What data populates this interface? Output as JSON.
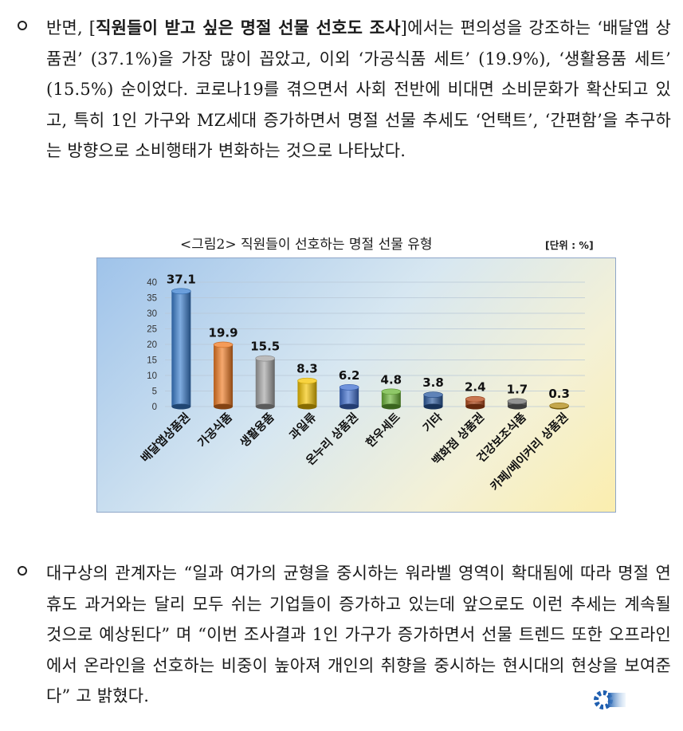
{
  "paragraph1": {
    "prefix": "반면, [",
    "bold": "직원들이 받고 싶은 명절 선물 선호도 조사",
    "rest": "]에서는 편의성을 강조하는 ‘배달앱 상품권’ (37.1%)을 가장 많이 꼽았고, 이외 ‘가공식품 세트’ (19.9%), ‘생활용품 세트’ (15.5%) 순이었다. 코로나19를 겪으면서 사회 전반에 비대면 소비문화가 확산되고 있고, 특히 1인 가구와 MZ세대 증가하면서 명절 선물 추세도 ‘언택트’, ‘간편함’을 추구하는 방향으로 소비행태가 변화하는 것으로 나타났다."
  },
  "figure": {
    "caption": "<그림2> 직원들이 선호하는 명절 선물 유형",
    "unit": "[단위 : %]"
  },
  "chart_data": {
    "type": "bar",
    "categories": [
      "배달앱상품권",
      "가공식품",
      "생활용품",
      "과일류",
      "온누리 상품권",
      "한우세트",
      "기타",
      "백화점 상품권",
      "건강보조식품",
      "카페/베이커리 상품권"
    ],
    "values": [
      37.1,
      19.9,
      15.5,
      8.3,
      6.2,
      4.8,
      3.8,
      2.4,
      1.7,
      0.3
    ],
    "value_labels": [
      "37.1",
      "19.9",
      "15.5",
      "8.3",
      "6.2",
      "4.8",
      "3.8",
      "2.4",
      "1.7",
      "0.3"
    ],
    "colors": [
      "#3a7fd0",
      "#f07a22",
      "#a5a5a5",
      "#f5c400",
      "#3f6fd0",
      "#6ab536",
      "#2a5aa0",
      "#b54a1a",
      "#6f6f6f",
      "#b08a10"
    ],
    "y_ticks": [
      0,
      5,
      10,
      15,
      20,
      25,
      30,
      35,
      40
    ],
    "ylim": [
      0,
      40
    ],
    "grid": true,
    "legend": "none"
  },
  "paragraph2": {
    "text": "대구상의 관계자는 “일과 여가의 균형을 중시하는 워라벨 영역이 확대됨에 따라 명절 연휴도 과거와는 달리 모두 쉬는 기업들이 증가하고 있는데 앞으로도 이런 추세는 계속될 것으로 예상된다” 며 “이번 조사결과 1인 가구가 증가하면서 선물 트렌드 또한 오프라인에서 온라인을 선호하는 비중이 높아져 개인의 취향을 중시하는 현시대의 현상을 보여준다” 고 밝혔다."
  },
  "icons": {
    "bullet": "hollow-circle-bullet-icon",
    "end_mark": "gear-logo-icon"
  }
}
